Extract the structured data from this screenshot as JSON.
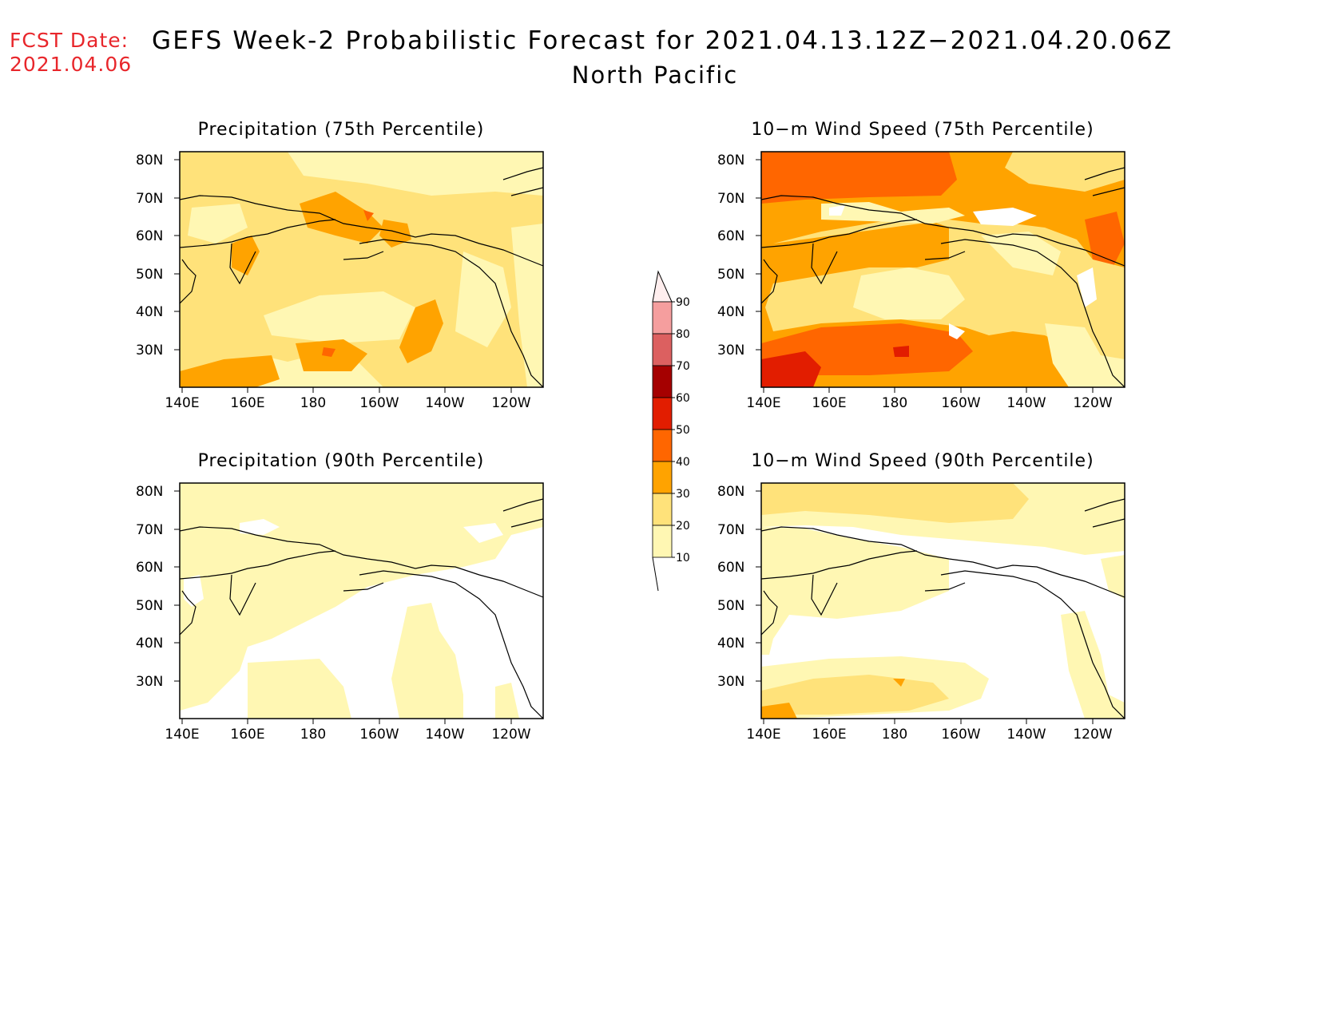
{
  "fcst": {
    "label": "FCST Date:",
    "date": "2021.04.06"
  },
  "title": "GEFS Week-2 Probabilistic Forecast for 2021.04.13.12Z−2021.04.20.06Z",
  "subtitle": "North Pacific",
  "colors": {
    "c10": "#fff7b3",
    "c20": "#ffe27a",
    "c30": "#ffa300",
    "c40": "#ff6600",
    "c50": "#e21d00",
    "c60": "#a50000",
    "c70": "#dc6060",
    "c80": "#f59e9e",
    "c90": "#ffe0e0",
    "coast": "#000000"
  },
  "panels": [
    {
      "id": "precip75",
      "title": "Precipitation (75th Percentile)"
    },
    {
      "id": "wind75",
      "title": "10−m Wind Speed (75th Percentile)"
    },
    {
      "id": "precip90",
      "title": "Precipitation (90th Percentile)"
    },
    {
      "id": "wind90",
      "title": "10−m Wind Speed (90th Percentile)"
    }
  ],
  "axes": {
    "lon_labels": [
      "140E",
      "160E",
      "180",
      "160W",
      "140W",
      "120W"
    ],
    "lat_labels": [
      "30N",
      "40N",
      "50N",
      "60N",
      "70N",
      "80N"
    ]
  },
  "colorbar": {
    "levels": [
      "10",
      "20",
      "30",
      "40",
      "50",
      "60",
      "70",
      "80",
      "90"
    ]
  }
}
